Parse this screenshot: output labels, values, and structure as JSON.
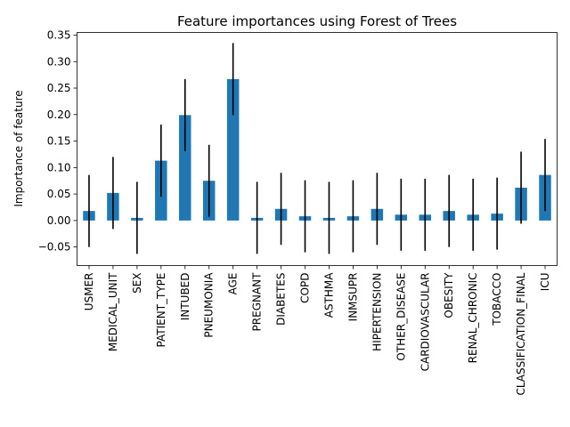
{
  "chart_data": {
    "type": "bar",
    "title": "Feature importances using Forest of Trees",
    "xlabel": "",
    "ylabel": "Importance of feature",
    "ylim": [
      -0.085,
      0.355
    ],
    "yticks": [
      "−0.05",
      "0.00",
      "0.05",
      "0.10",
      "0.15",
      "0.20",
      "0.25",
      "0.30",
      "0.35"
    ],
    "ytick_values": [
      -0.05,
      0.0,
      0.05,
      0.1,
      0.15,
      0.2,
      0.25,
      0.3,
      0.35
    ],
    "bar_color": "#1f77b4",
    "error_color": "#000000",
    "grid": false,
    "categories": [
      "USMER",
      "MEDICAL_UNIT",
      "SEX",
      "PATIENT_TYPE",
      "INTUBED",
      "PNEUMONIA",
      "AGE",
      "PREGNANT",
      "DIABETES",
      "COPD",
      "ASTHMA",
      "INMSUPR",
      "HIPERTENSION",
      "OTHER_DISEASE",
      "CARDIOVASCULAR",
      "OBESITY",
      "RENAL_CHRONIC",
      "TOBACCO",
      "CLASSIFICATION_FINAL",
      "ICU"
    ],
    "values": [
      0.018,
      0.052,
      0.005,
      0.113,
      0.199,
      0.075,
      0.267,
      0.005,
      0.022,
      0.008,
      0.005,
      0.008,
      0.022,
      0.011,
      0.011,
      0.018,
      0.011,
      0.013,
      0.062,
      0.086
    ],
    "errors": [
      0.068,
      0.068,
      0.068,
      0.068,
      0.068,
      0.068,
      0.068,
      0.068,
      0.068,
      0.068,
      0.068,
      0.068,
      0.068,
      0.068,
      0.068,
      0.068,
      0.068,
      0.068,
      0.068,
      0.068
    ]
  }
}
